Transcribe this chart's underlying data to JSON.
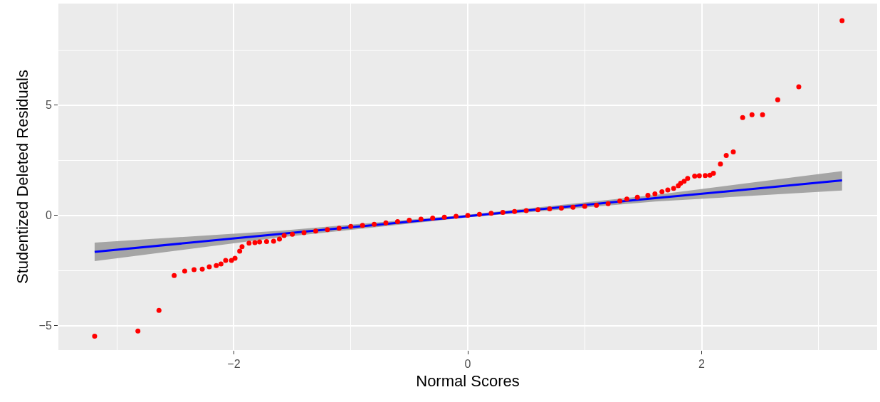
{
  "chart_data": {
    "type": "scatter",
    "xlabel": "Normal Scores",
    "ylabel": "Studentized Deleted Residuals",
    "xlim": [
      -3.5,
      3.5
    ],
    "ylim": [
      -6.1,
      9.6
    ],
    "xticks": [
      {
        "value": -2,
        "label": "−2"
      },
      0,
      2
    ],
    "yticks": [
      {
        "value": -5,
        "label": "−5"
      },
      0,
      5
    ],
    "grid": true,
    "series": [
      {
        "type": "line",
        "color": "#0000ff",
        "x": [
          -3.19,
          -1.6,
          0,
          1.6,
          3.2
        ],
        "values": [
          -1.65,
          -0.84,
          -0.03,
          0.78,
          1.59
        ],
        "lower": [
          -2.07,
          -0.99,
          -0.09,
          0.63,
          1.13
        ],
        "upper": [
          -1.23,
          -0.69,
          0.03,
          0.93,
          2.01
        ]
      },
      {
        "marker": "circle",
        "color": "#ff0000",
        "x": [
          -3.19,
          -2.82,
          -2.64,
          -2.51,
          -2.42,
          -2.34,
          -2.27,
          -2.21,
          -2.15,
          -2.11,
          -2.07,
          -2.02,
          -1.99,
          -1.95,
          -1.93,
          -1.87,
          -1.82,
          -1.78,
          -1.72,
          -1.66,
          -1.61,
          -1.57,
          -1.5,
          -1.4,
          -1.3,
          -1.2,
          -1.1,
          -1.0,
          -0.9,
          -0.8,
          -0.7,
          -0.6,
          -0.5,
          -0.4,
          -0.3,
          -0.2,
          -0.1,
          0,
          0.1,
          0.2,
          0.3,
          0.4,
          0.5,
          0.6,
          0.7,
          0.8,
          0.9,
          1.0,
          1.1,
          1.2,
          1.3,
          1.36,
          1.45,
          1.54,
          1.6,
          1.66,
          1.71,
          1.76,
          1.8,
          1.82,
          1.85,
          1.88,
          1.94,
          1.98,
          2.03,
          2.07,
          2.1,
          2.16,
          2.21,
          2.27,
          2.35,
          2.43,
          2.52,
          2.65,
          2.83,
          3.2
        ],
        "values": [
          -5.47,
          -5.24,
          -4.3,
          -2.72,
          -2.52,
          -2.46,
          -2.43,
          -2.33,
          -2.27,
          -2.2,
          -2.04,
          -2.04,
          -1.94,
          -1.62,
          -1.42,
          -1.26,
          -1.23,
          -1.2,
          -1.18,
          -1.17,
          -1.07,
          -0.91,
          -0.85,
          -0.78,
          -0.71,
          -0.64,
          -0.58,
          -0.5,
          -0.45,
          -0.4,
          -0.34,
          -0.28,
          -0.22,
          -0.17,
          -0.12,
          -0.08,
          -0.04,
          0,
          0.05,
          0.1,
          0.14,
          0.18,
          0.22,
          0.26,
          0.3,
          0.33,
          0.37,
          0.41,
          0.46,
          0.53,
          0.65,
          0.74,
          0.82,
          0.91,
          0.98,
          1.07,
          1.15,
          1.23,
          1.35,
          1.46,
          1.55,
          1.68,
          1.78,
          1.8,
          1.81,
          1.82,
          1.91,
          2.33,
          2.72,
          2.88,
          4.43,
          4.56,
          4.56,
          5.24,
          5.83,
          8.83
        ]
      }
    ]
  }
}
